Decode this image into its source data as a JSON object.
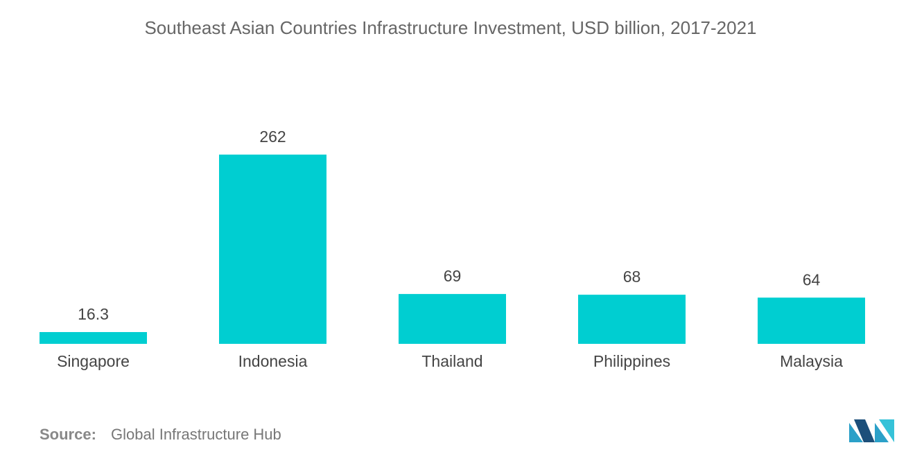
{
  "chart_data": {
    "type": "bar",
    "title": "Southeast Asian Countries Infrastructure Investment, USD billion, 2017-2021",
    "categories": [
      "Singapore",
      "Indonesia",
      "Thailand",
      "Philippines",
      "Malaysia"
    ],
    "values": [
      16.3,
      262,
      69,
      68,
      64
    ],
    "color": "#00ced1"
  },
  "footer": {
    "source_label": "Source:",
    "source": "Global Infrastructure Hub"
  }
}
